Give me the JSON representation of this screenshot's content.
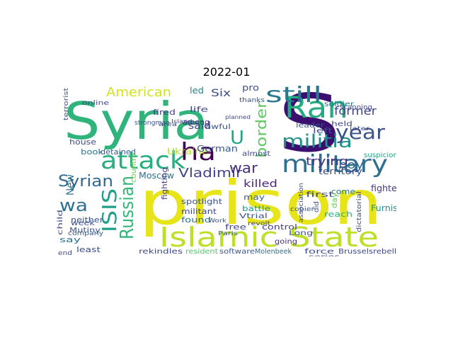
{
  "figure": {
    "title": "2022-01"
  },
  "words": [
    {
      "text": "Syria",
      "color": "#2fb47c"
    },
    {
      "text": "S",
      "color": "#3b0f70"
    },
    {
      "text": "prison",
      "color": "#e7e419"
    },
    {
      "text": "Islamic State",
      "color": "#bddf26"
    },
    {
      "text": "Ran",
      "color": "#25ab82"
    },
    {
      "text": "attack",
      "color": "#28ae80"
    },
    {
      "text": "military",
      "color": "#2e6e8e"
    },
    {
      "text": "still",
      "color": "#2a788e"
    },
    {
      "text": "ha",
      "color": "#440154"
    },
    {
      "text": "militia",
      "color": "#21918c"
    },
    {
      "text": "year",
      "color": "#3b528b"
    },
    {
      "text": "ISIS",
      "color": "#1f9e89"
    },
    {
      "text": "Russian",
      "color": "#35b779"
    },
    {
      "text": "Syrian",
      "color": "#31688e"
    },
    {
      "text": "wa",
      "color": "#2c728e"
    },
    {
      "text": "American",
      "color": "#d2e21b"
    },
    {
      "text": "border",
      "color": "#5ec962"
    },
    {
      "text": "Vladimir",
      "color": "#414487"
    },
    {
      "text": "war",
      "color": "#46327e"
    },
    {
      "text": "U",
      "color": "#21a585"
    },
    {
      "text": "trying",
      "color": "#472d7b"
    },
    {
      "text": "Ukraine",
      "color": "#b5de2b"
    },
    {
      "text": "German",
      "color": "#38588c"
    },
    {
      "text": "killed",
      "color": "#482878"
    },
    {
      "text": "former",
      "color": "#404688"
    },
    {
      "text": "boy",
      "color": "#31688e"
    },
    {
      "text": "suspicion",
      "color": "#22a884"
    },
    {
      "text": "territory",
      "color": "#3e4989"
    },
    {
      "text": "Moscow",
      "color": "#2d708e"
    },
    {
      "text": "Furnish",
      "color": "#21918c"
    },
    {
      "text": "fighter",
      "color": "#453781"
    },
    {
      "text": "New",
      "color": "#2c728e"
    },
    {
      "text": "said",
      "color": "#424086"
    },
    {
      "text": "Six",
      "color": "#3f4889"
    },
    {
      "text": "led",
      "color": "#277f8e"
    },
    {
      "text": "pro",
      "color": "#3b528b"
    },
    {
      "text": "fired",
      "color": "#443983"
    },
    {
      "text": "life",
      "color": "#404588"
    },
    {
      "text": "among",
      "color": "#46307e"
    },
    {
      "text": "house",
      "color": "#3d4e8a"
    },
    {
      "text": "book",
      "color": "#2a768e"
    },
    {
      "text": "detained",
      "color": "#365c8d"
    },
    {
      "text": "country",
      "color": "#6ece58"
    },
    {
      "text": "fighting",
      "color": "#433e85"
    },
    {
      "text": "spotlight",
      "color": "#3a548c"
    },
    {
      "text": "militant",
      "color": "#3f4788"
    },
    {
      "text": "found",
      "color": "#2d708e"
    },
    {
      "text": "may",
      "color": "#355f8d"
    },
    {
      "text": "battle",
      "color": "#1f998a"
    },
    {
      "text": "control",
      "color": "#433d84"
    },
    {
      "text": "reach",
      "color": "#29af7f"
    },
    {
      "text": "first",
      "color": "#3e4a89"
    },
    {
      "text": "come",
      "color": "#2a788e"
    },
    {
      "text": "free",
      "color": "#404588"
    },
    {
      "text": "Paris",
      "color": "#365d8d"
    },
    {
      "text": "Long",
      "color": "#3c4f8a"
    },
    {
      "text": "force",
      "color": "#3e4a89"
    },
    {
      "text": "going",
      "color": "#472a7a"
    },
    {
      "text": "series",
      "color": "#3b528b"
    },
    {
      "text": "Brusselsrebellion",
      "color": "#3f4889"
    },
    {
      "text": "software",
      "color": "#38588c"
    },
    {
      "text": "Molenbeek",
      "color": "#2d708e"
    },
    {
      "text": "resident",
      "color": "#54c568"
    },
    {
      "text": "rekindles",
      "color": "#3f4889"
    },
    {
      "text": "least",
      "color": "#3e4c8a"
    },
    {
      "text": "say",
      "color": "#2c738e"
    },
    {
      "text": "neither",
      "color": "#3b528b"
    },
    {
      "text": "company",
      "color": "#38598c"
    },
    {
      "text": "child",
      "color": "#3e4c8a"
    },
    {
      "text": "week",
      "color": "#3c508b"
    },
    {
      "text": "Mutiny",
      "color": "#3a548c"
    },
    {
      "text": "end",
      "color": "#3e4c8a"
    },
    {
      "text": "leader",
      "color": "#39558c"
    },
    {
      "text": "left",
      "color": "#3d4d8a"
    },
    {
      "text": "held",
      "color": "#3f4788"
    },
    {
      "text": "soldier",
      "color": "#2a768e"
    },
    {
      "text": "almost",
      "color": "#3f4788"
    },
    {
      "text": "awful",
      "color": "#3b518b"
    },
    {
      "text": "online",
      "color": "#3e4989"
    },
    {
      "text": "strongman",
      "color": "#3c508b"
    },
    {
      "text": "copier",
      "color": "#3a548c"
    },
    {
      "text": "Vtrial",
      "color": "#3b528b"
    },
    {
      "text": "revolt",
      "color": "#3f4889"
    },
    {
      "text": "thanks",
      "color": "#3b528b"
    },
    {
      "text": "scanning",
      "color": "#414487"
    },
    {
      "text": "terrorist",
      "color": "#3c508b"
    },
    {
      "text": "Work",
      "color": "#3b528b"
    },
    {
      "text": "Island",
      "color": "#3d4d8a"
    },
    {
      "text": "planned",
      "color": "#3e4c8a"
    },
    {
      "text": "day",
      "color": "#6ccd5a"
    },
    {
      "text": "did",
      "color": "#3c4f8a"
    },
    {
      "text": "association",
      "color": "#3c508b"
    },
    {
      "text": "dictatorial",
      "color": "#3e4989"
    },
    {
      "text": "later",
      "color": "#3f4889"
    },
    {
      "text": "area",
      "color": "#3e4c8a"
    }
  ]
}
